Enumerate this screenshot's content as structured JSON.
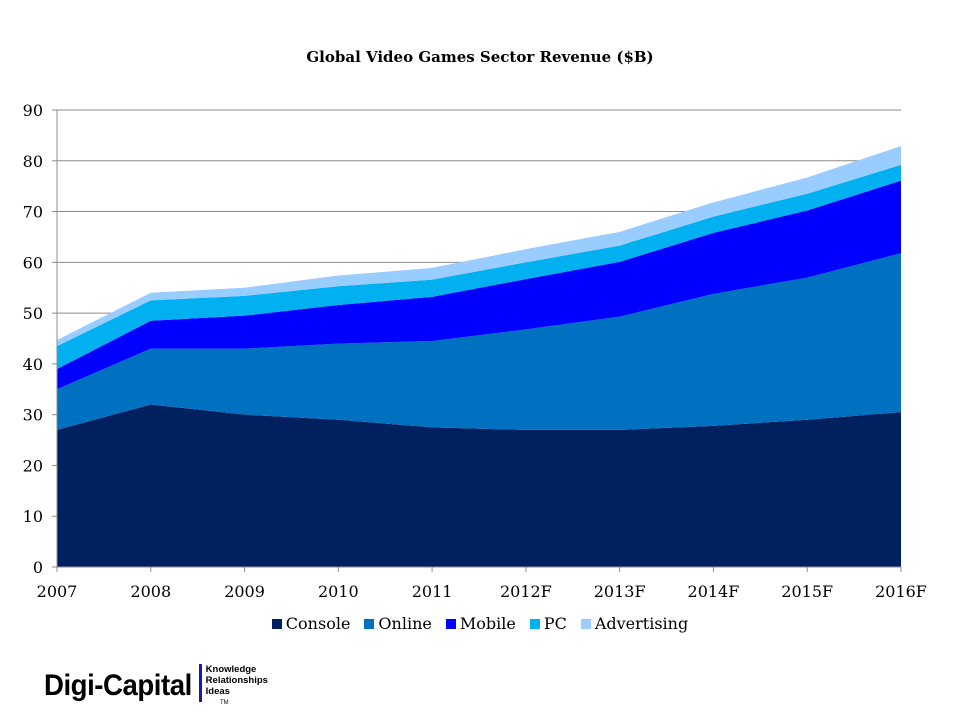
{
  "chart_data": {
    "type": "area",
    "stacked": true,
    "title": "Global Video Games Sector Revenue ($B)",
    "xlabel": "",
    "ylabel": "",
    "ylim": [
      0,
      90
    ],
    "yticks": [
      "0",
      "10",
      "20",
      "30",
      "40",
      "50",
      "60",
      "70",
      "80",
      "90"
    ],
    "grid": true,
    "legend_position": "bottom",
    "categories": [
      "2007",
      "2008",
      "2009",
      "2010",
      "2011",
      "2012F",
      "2013F",
      "2014F",
      "2015F",
      "2016F"
    ],
    "series": [
      {
        "name": "Console",
        "color": "#002060",
        "values": [
          27,
          32,
          30,
          29,
          27.5,
          27,
          27,
          27.8,
          29,
          30.5
        ]
      },
      {
        "name": "Online",
        "color": "#0070c0",
        "values": [
          8,
          11,
          13,
          15,
          17,
          19.8,
          22.3,
          26,
          28,
          31.3
        ]
      },
      {
        "name": "Mobile",
        "color": "#0000ff",
        "values": [
          4,
          5.5,
          6.5,
          7.6,
          8.7,
          9.9,
          10.8,
          12,
          13.2,
          14.3
        ]
      },
      {
        "name": "PC",
        "color": "#00b0f0",
        "values": [
          4.5,
          4,
          3.9,
          3.7,
          3.4,
          3.3,
          3.2,
          3.2,
          3.3,
          3.1
        ]
      },
      {
        "name": "Advertising",
        "color": "#99ccff",
        "values": [
          1.2,
          1.5,
          1.6,
          2.1,
          2.3,
          2.6,
          2.7,
          2.8,
          3.2,
          3.7
        ]
      }
    ]
  },
  "logo": {
    "name": "Digi-Capital",
    "taglines": [
      "Knowledge",
      "Relationships",
      "Ideas"
    ],
    "trademark": "TM"
  }
}
